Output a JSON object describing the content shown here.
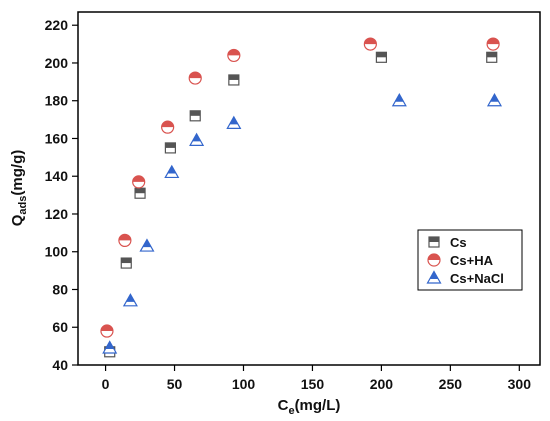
{
  "chart_data": {
    "type": "scatter",
    "xlabel": {
      "main": "C",
      "sub": "e",
      "rest": "(mg/L)"
    },
    "ylabel": {
      "main": "Q",
      "sub": "ads",
      "rest": "(mg/g)"
    },
    "xlim": [
      -20,
      315
    ],
    "ylim": [
      40,
      227
    ],
    "xticks": [
      0,
      50,
      100,
      150,
      200,
      250,
      300
    ],
    "yticks": [
      40,
      60,
      80,
      100,
      120,
      140,
      160,
      180,
      200,
      220
    ],
    "grid": false,
    "legend_position": "right-middle",
    "series": [
      {
        "name": "Cs",
        "marker": "square-half",
        "color": "#555555",
        "points": [
          [
            3,
            47
          ],
          [
            15,
            94
          ],
          [
            25,
            131
          ],
          [
            47,
            155
          ],
          [
            65,
            172
          ],
          [
            93,
            191
          ],
          [
            200,
            203
          ],
          [
            280,
            203
          ]
        ]
      },
      {
        "name": "Cs+HA",
        "marker": "circle-half",
        "color": "#d9534f",
        "points": [
          [
            1,
            58
          ],
          [
            14,
            106
          ],
          [
            24,
            137
          ],
          [
            45,
            166
          ],
          [
            65,
            192
          ],
          [
            93,
            204
          ],
          [
            192,
            210
          ],
          [
            281,
            210
          ]
        ]
      },
      {
        "name": "Cs+NaCl",
        "marker": "triangle-half",
        "color": "#3366cc",
        "points": [
          [
            3,
            49
          ],
          [
            18,
            74
          ],
          [
            30,
            103
          ],
          [
            48,
            142
          ],
          [
            66,
            159
          ],
          [
            93,
            168
          ],
          [
            213,
            180
          ],
          [
            282,
            180
          ]
        ]
      }
    ]
  }
}
